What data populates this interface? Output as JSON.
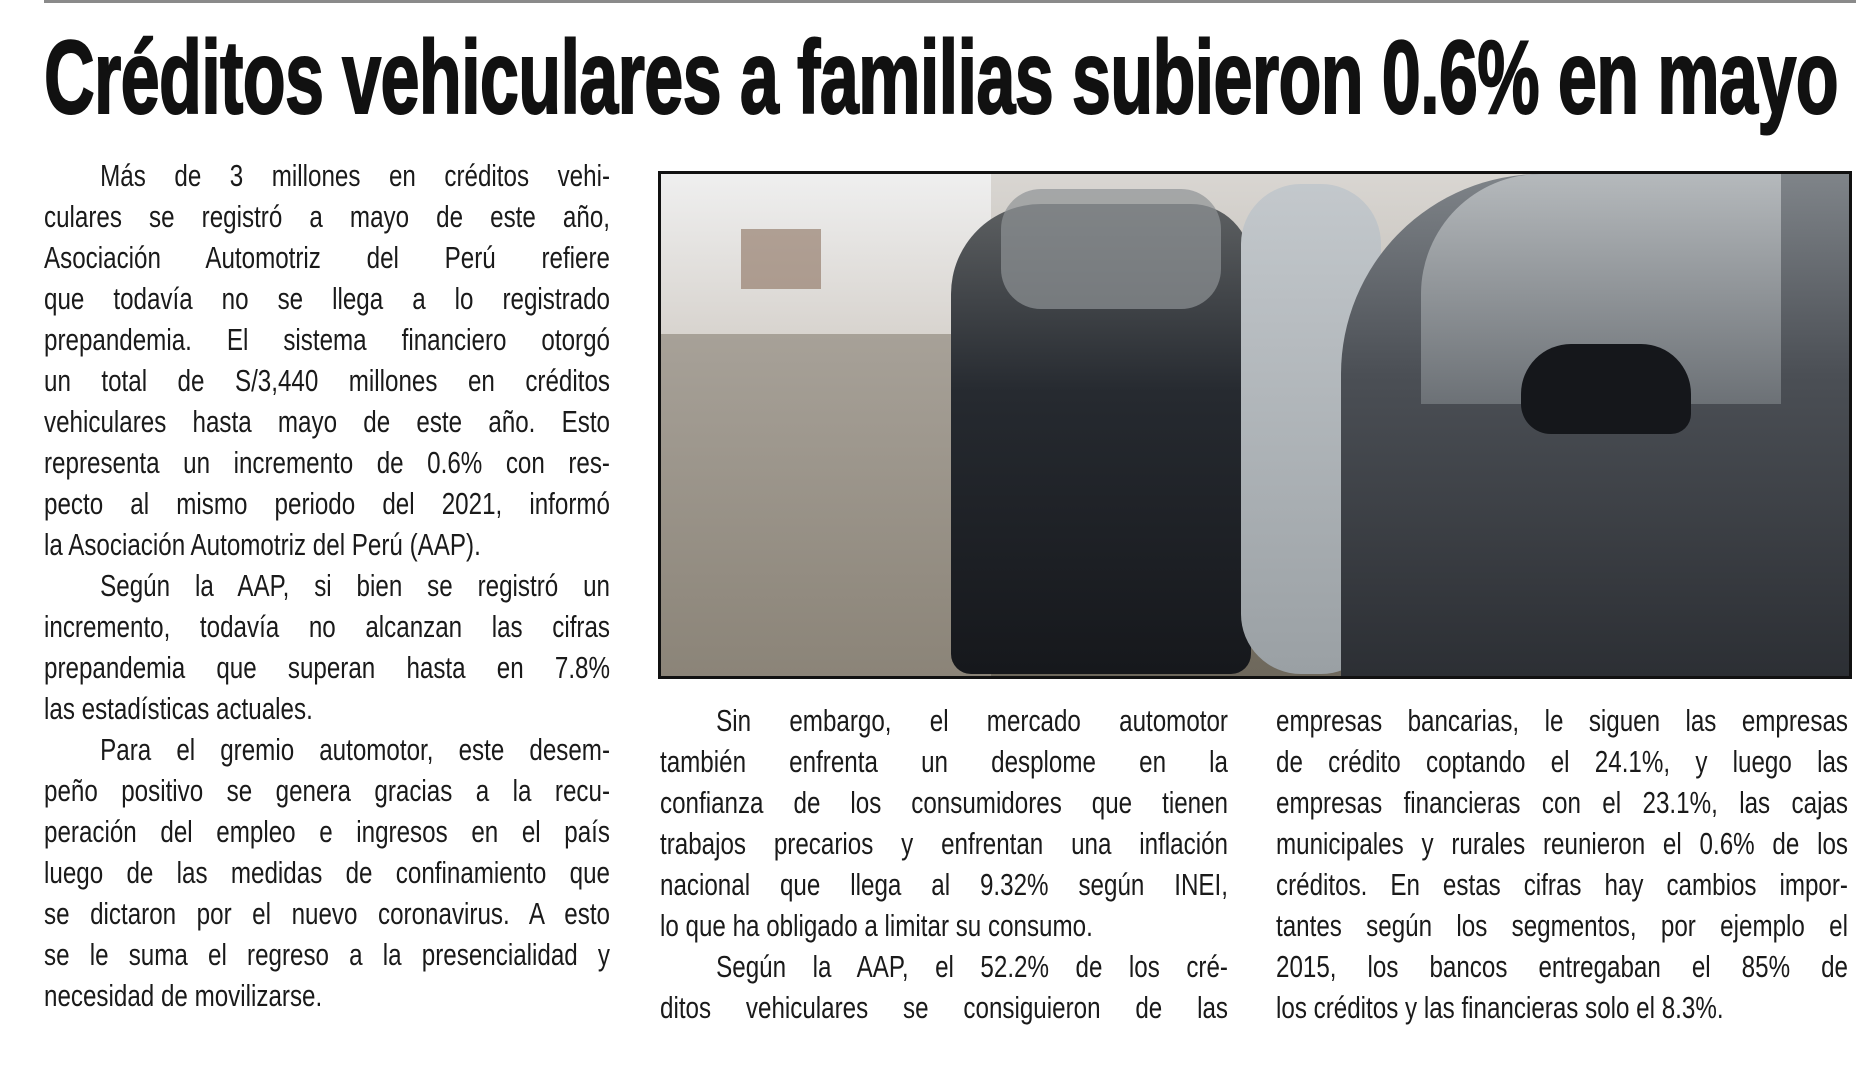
{
  "headline": "Créditos vehiculares a familias subieron 0.6% en mayo",
  "photo": {
    "subject": "parked-cars-photo"
  },
  "columns": [
    {
      "paragraphs": [
        {
          "indent": true,
          "ends": true,
          "lines": [
            "Más de 3 millones en créditos vehi-",
            "culares se registró a mayo de este año,",
            "Asociación Automotriz del Perú refiere",
            "que todavía no se llega a lo registrado",
            "prepandemia. El sistema financiero otorgó",
            "un total de S/3,440 millones en créditos",
            "vehiculares hasta mayo de este año. Esto",
            "representa un incremento de 0.6% con res-",
            "pecto al mismo periodo del 2021, informó",
            "la Asociación Automotriz del Perú (AAP)."
          ]
        },
        {
          "indent": true,
          "ends": true,
          "lines": [
            "Según la AAP, si bien se registró un",
            "incremento, todavía no alcanzan las cifras",
            "prepandemia que superan hasta en 7.8%",
            "las estadísticas actuales."
          ]
        },
        {
          "indent": true,
          "ends": true,
          "lines": [
            "Para el gremio automotor, este desem-",
            "peño positivo se genera gracias a la recu-",
            "peración del empleo e ingresos en el país",
            "luego de las medidas de confinamiento que",
            "se dictaron por el nuevo coronavirus. A esto",
            "se le suma el regreso a la presencialidad y",
            "necesidad de movilizarse."
          ]
        }
      ]
    },
    {
      "paragraphs": [
        {
          "indent": true,
          "ends": true,
          "lines": [
            "Sin embargo, el mercado automotor",
            "también enfrenta un desplome en la",
            "confianza de los consumidores que tienen",
            "trabajos precarios y enfrentan una inflación",
            "nacional que llega al 9.32% según INEI,",
            "lo que ha obligado a limitar su consumo."
          ]
        },
        {
          "indent": true,
          "ends": false,
          "lines": [
            "Según la AAP, el 52.2% de los cré-",
            "ditos vehiculares se consiguieron de las"
          ]
        }
      ]
    },
    {
      "paragraphs": [
        {
          "indent": false,
          "ends": true,
          "lines": [
            "empresas bancarias, le siguen las empresas",
            "de crédito coptando el 24.1%, y luego las",
            "empresas financieras con el 23.1%, las cajas",
            "municipales y rurales reunieron el 0.6% de los",
            "créditos. En estas cifras hay cambios impor-",
            "tantes según los segmentos, por ejemplo el",
            "2015, los bancos entregaban el 85% de",
            "los créditos y las financieras solo el 8.3%."
          ]
        }
      ]
    }
  ]
}
